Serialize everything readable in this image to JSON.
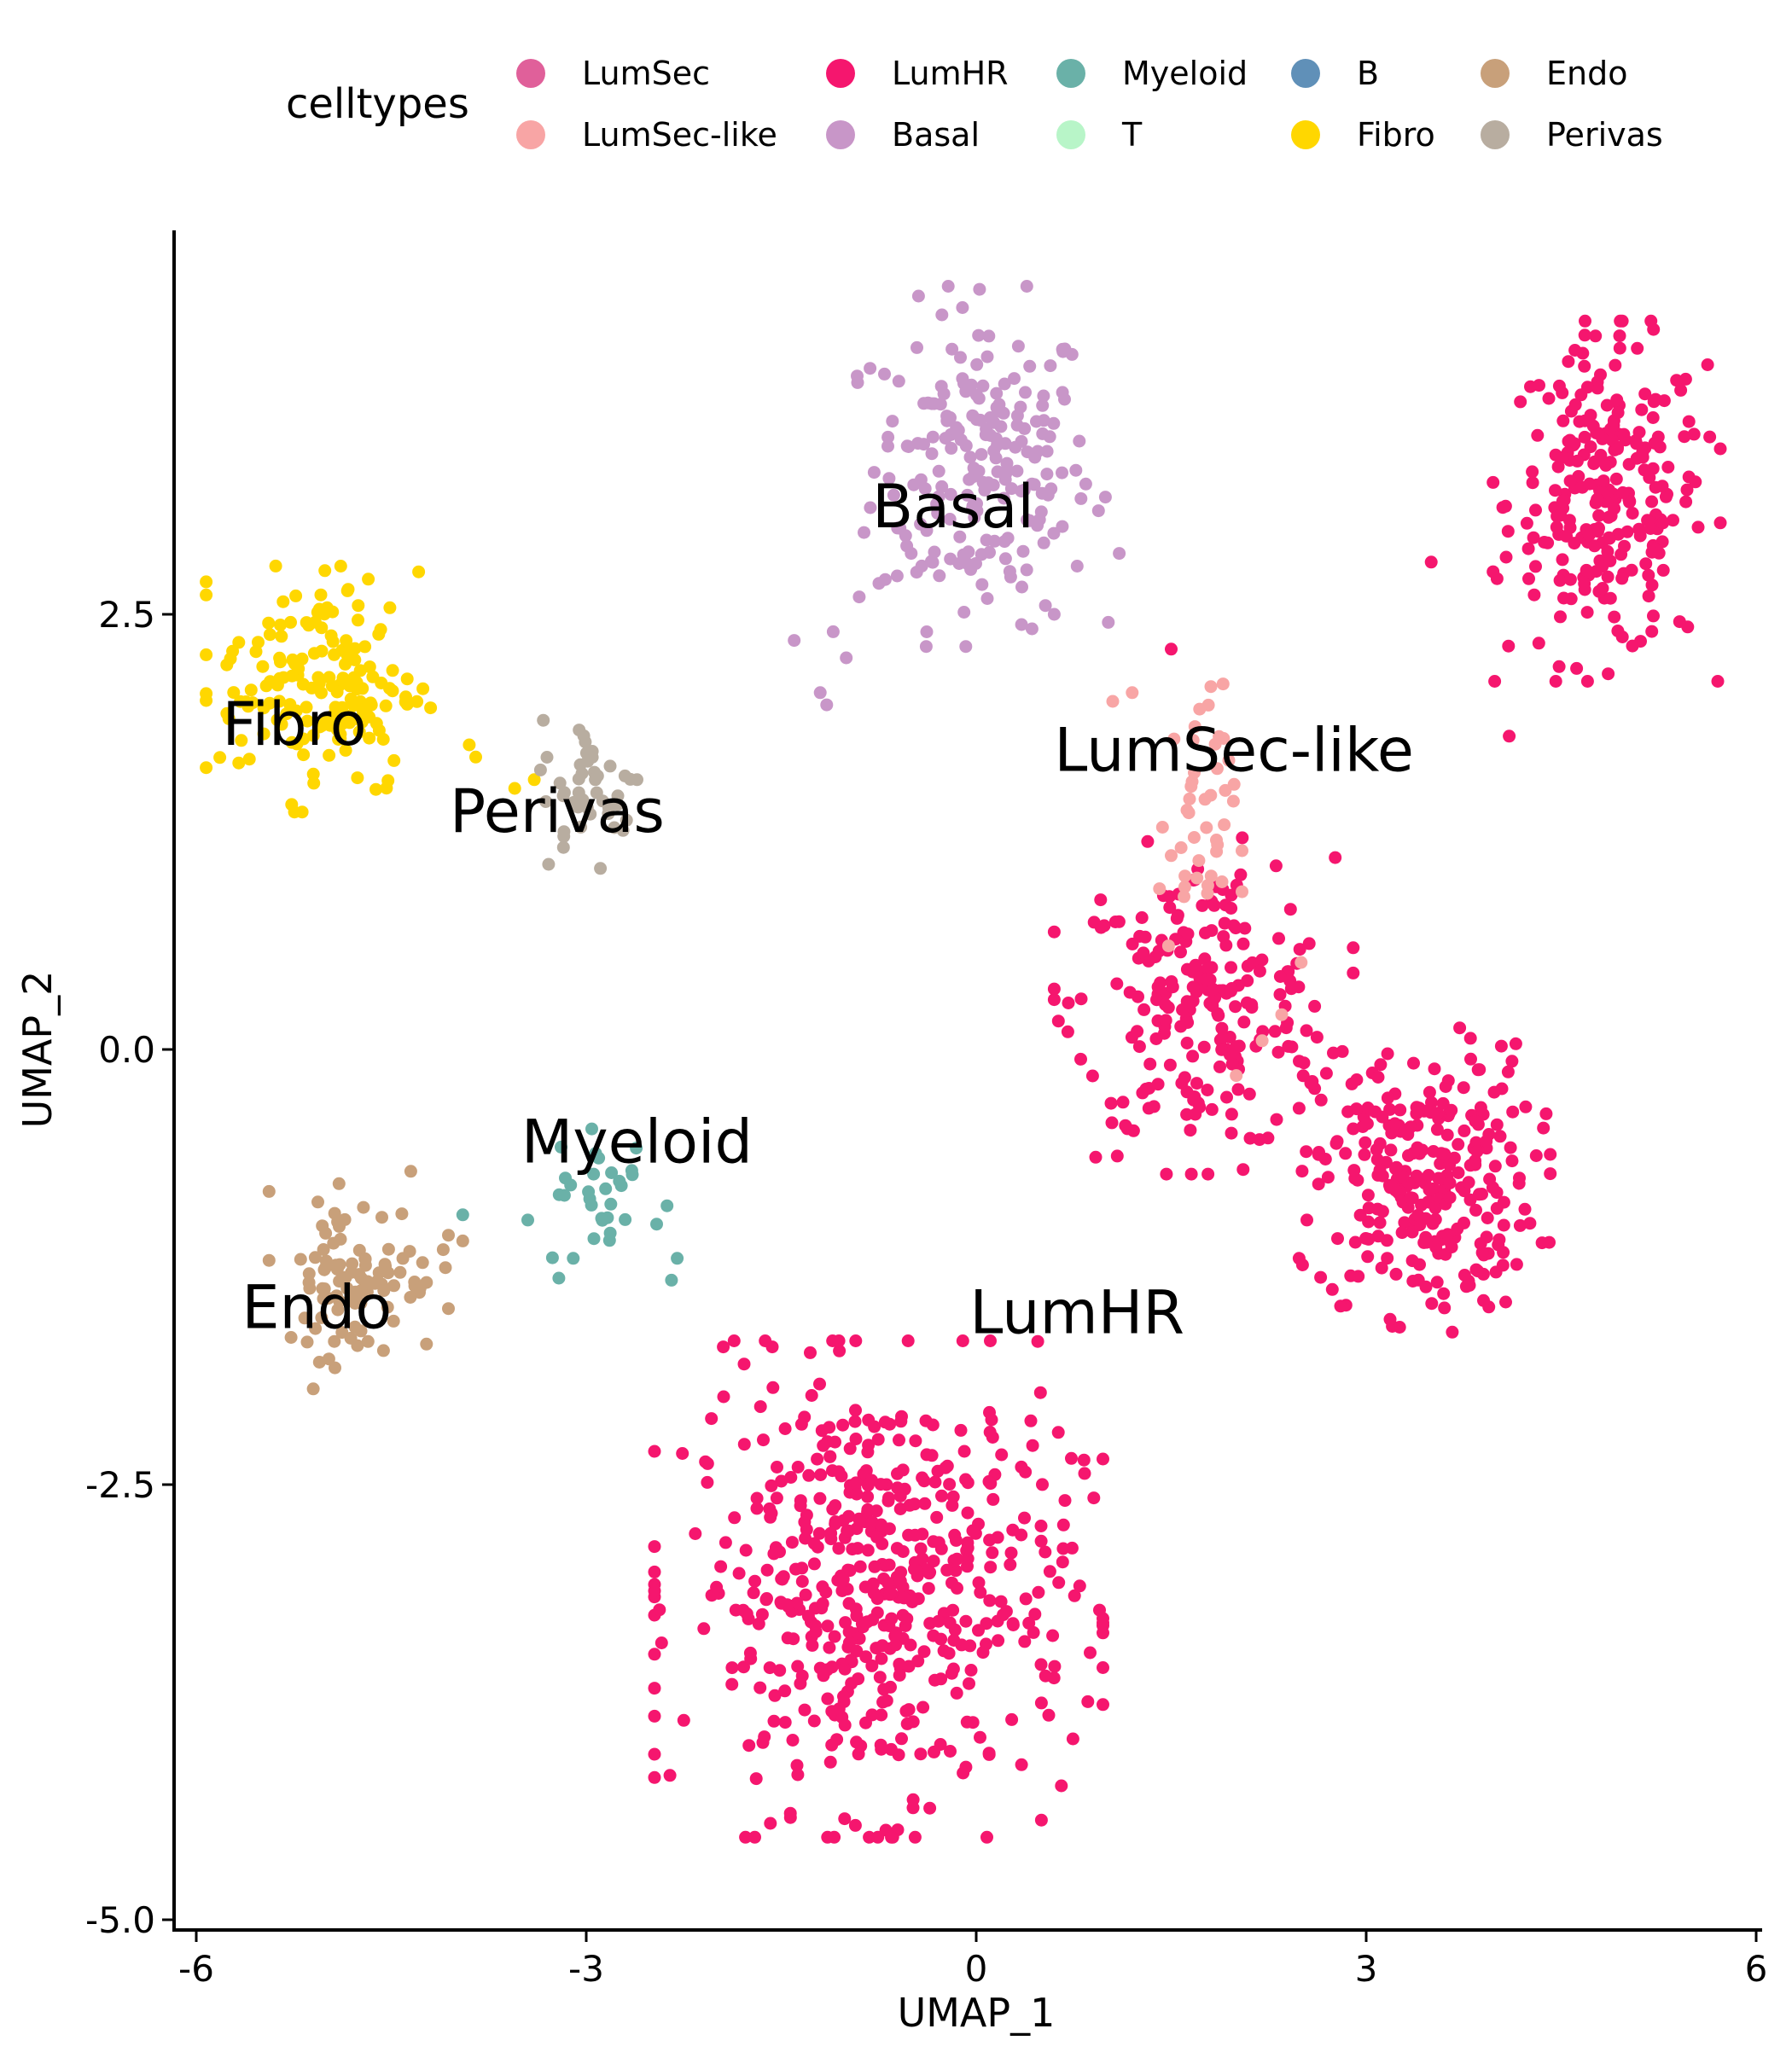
{
  "chart_data": {
    "type": "scatter",
    "xlabel": "UMAP_1",
    "ylabel": "UMAP_2",
    "xlim": [
      -6.2,
      6.1
    ],
    "ylim": [
      -5.1,
      4.7
    ],
    "xticks": [
      {
        "value": -6,
        "label": "-6"
      },
      {
        "value": -3,
        "label": "-3"
      },
      {
        "value": 0,
        "label": "0"
      },
      {
        "value": 3,
        "label": "3"
      },
      {
        "value": 6,
        "label": "6"
      }
    ],
    "yticks": [
      {
        "value": 2.5,
        "label": "2.5"
      },
      {
        "value": 0,
        "label": "0.0"
      },
      {
        "value": -2.5,
        "label": "-2.5"
      },
      {
        "value": -5,
        "label": "-5.0"
      }
    ],
    "grid": false,
    "legend": {
      "title": "celltypes",
      "placement": "top",
      "entries": [
        {
          "name": "LumSec",
          "color": "#E0609A"
        },
        {
          "name": "LumSec-like",
          "color": "#F8A5A5"
        },
        {
          "name": "LumHR",
          "color": "#F5166E"
        },
        {
          "name": "Basal",
          "color": "#C896C8"
        },
        {
          "name": "Myeloid",
          "color": "#6AB1A8"
        },
        {
          "name": "T",
          "color": "#B8F5C8"
        },
        {
          "name": "B",
          "color": "#6090B8"
        },
        {
          "name": "Fibro",
          "color": "#FFD700"
        },
        {
          "name": "Endo",
          "color": "#C8A07A"
        },
        {
          "name": "Perivas",
          "color": "#B8ADA0"
        }
      ]
    },
    "series": [
      {
        "name": "Basal",
        "color": "#C896C8",
        "count": 210,
        "cx": 0.05,
        "cy": 3.35,
        "sx": 0.42,
        "sy": 0.45,
        "extra": [
          [
            -1.4,
            2.35
          ],
          [
            -1.2,
            2.05
          ],
          [
            -1.15,
            1.98
          ],
          [
            -1.0,
            2.25
          ],
          [
            -1.1,
            2.4
          ],
          [
            -0.9,
            2.6
          ],
          [
            -0.7,
            2.7
          ],
          [
            -0.5,
            2.85
          ],
          [
            1.1,
            2.85
          ],
          [
            0.6,
            2.5
          ]
        ]
      },
      {
        "name": "LumHR",
        "color": "#F5166E",
        "count": 1300,
        "clusters": [
          {
            "cx": 4.85,
            "cy": 3.15,
            "sx": 0.38,
            "sy": 0.45,
            "n": 250
          },
          {
            "cx": 1.75,
            "cy": 0.25,
            "sx": 0.5,
            "sy": 0.42,
            "n": 230
          },
          {
            "cx": 3.45,
            "cy": -0.75,
            "sx": 0.42,
            "sy": 0.38,
            "n": 280
          },
          {
            "cx": -0.75,
            "cy": -3.1,
            "sx": 0.75,
            "sy": 0.62,
            "n": 540
          }
        ],
        "extra": [
          [
            3.5,
            2.8
          ],
          [
            4.1,
            1.8
          ],
          [
            1.5,
            2.3
          ],
          [
            4.95,
            4.1
          ]
        ]
      },
      {
        "name": "LumSec-like",
        "color": "#F8A5A5",
        "count": 45,
        "cx": 1.7,
        "cy": 1.3,
        "sx": 0.15,
        "sy": 0.38,
        "extra": [
          [
            1.05,
            2.0
          ],
          [
            1.2,
            2.05
          ],
          [
            2.2,
            0.05
          ],
          [
            2.35,
            0.2
          ],
          [
            2.5,
            0.5
          ],
          [
            2.0,
            -0.15
          ]
        ]
      },
      {
        "name": "Fibro",
        "color": "#FFD700",
        "count": 170,
        "cx": -5.05,
        "cy": 2.1,
        "sx": 0.38,
        "sy": 0.32,
        "extra": [
          [
            -3.85,
            1.68
          ],
          [
            -3.9,
            1.75
          ],
          [
            -3.4,
            1.55
          ],
          [
            -3.55,
            1.5
          ]
        ]
      },
      {
        "name": "Perivas",
        "color": "#B8ADA0",
        "count": 45,
        "cx": -2.95,
        "cy": 1.5,
        "sx": 0.2,
        "sy": 0.2,
        "extra": []
      },
      {
        "name": "Myeloid",
        "color": "#6AB1A8",
        "count": 32,
        "cx": -2.85,
        "cy": -0.85,
        "sx": 0.22,
        "sy": 0.22,
        "extra": [
          [
            -3.95,
            -0.95
          ],
          [
            -3.45,
            -0.98
          ],
          [
            -2.3,
            -1.2
          ],
          [
            -3.1,
            -1.2
          ]
        ]
      },
      {
        "name": "Endo",
        "color": "#C8A07A",
        "count": 95,
        "cx": -4.75,
        "cy": -1.3,
        "sx": 0.3,
        "sy": 0.23,
        "extra": [
          [
            -5.1,
            -1.95
          ],
          [
            -4.35,
            -0.7
          ],
          [
            -4.1,
            -1.15
          ],
          [
            -3.95,
            -1.1
          ]
        ]
      }
    ],
    "annotations": [
      {
        "text": "Basal",
        "x": -0.8,
        "y": 3.0
      },
      {
        "text": "Fibro",
        "x": -5.8,
        "y": 1.75
      },
      {
        "text": "Perivas",
        "x": -4.05,
        "y": 1.25
      },
      {
        "text": "LumSec-like",
        "x": 0.6,
        "y": 1.6
      },
      {
        "text": "Myeloid",
        "x": -3.5,
        "y": -0.65
      },
      {
        "text": "Endo",
        "x": -5.65,
        "y": -1.6
      },
      {
        "text": "LumHR",
        "x": -0.05,
        "y": -1.63
      }
    ]
  }
}
